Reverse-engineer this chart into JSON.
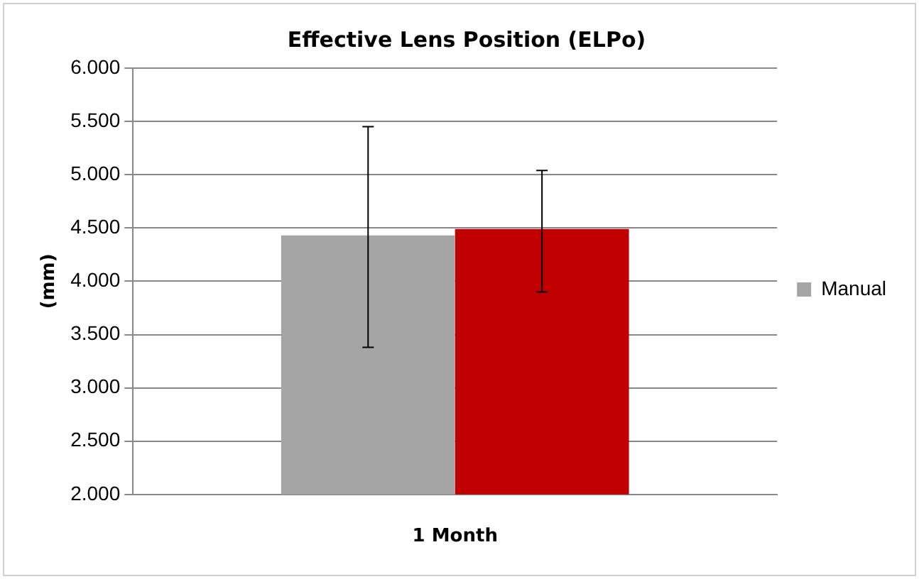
{
  "chart_data": {
    "type": "bar",
    "title": "Effective Lens Position (ELPo)",
    "ylabel": "(mm)",
    "categories": [
      "1 Month"
    ],
    "series": [
      {
        "name": "Manual",
        "color": "#a5a5a5",
        "values": [
          4.43
        ],
        "errors": [
          [
            3.38,
            5.45
          ]
        ]
      },
      {
        "color": "#c00000",
        "values": [
          4.49
        ],
        "errors": [
          [
            3.9,
            5.04
          ]
        ]
      }
    ],
    "ylim": [
      2,
      6
    ],
    "yticks": [
      {
        "value": 2,
        "label": "2.000"
      },
      {
        "value": 2.5,
        "label": "2.500"
      },
      {
        "value": 3,
        "label": "3.000"
      },
      {
        "value": 3.5,
        "label": "3.500"
      },
      {
        "value": 4,
        "label": "4.000"
      },
      {
        "value": 4.5,
        "label": "4.500"
      },
      {
        "value": 5,
        "label": "5.000"
      },
      {
        "value": 5.5,
        "label": "5.500"
      },
      {
        "value": 6,
        "label": "6.000"
      }
    ],
    "grid": "y",
    "legend": "right"
  }
}
